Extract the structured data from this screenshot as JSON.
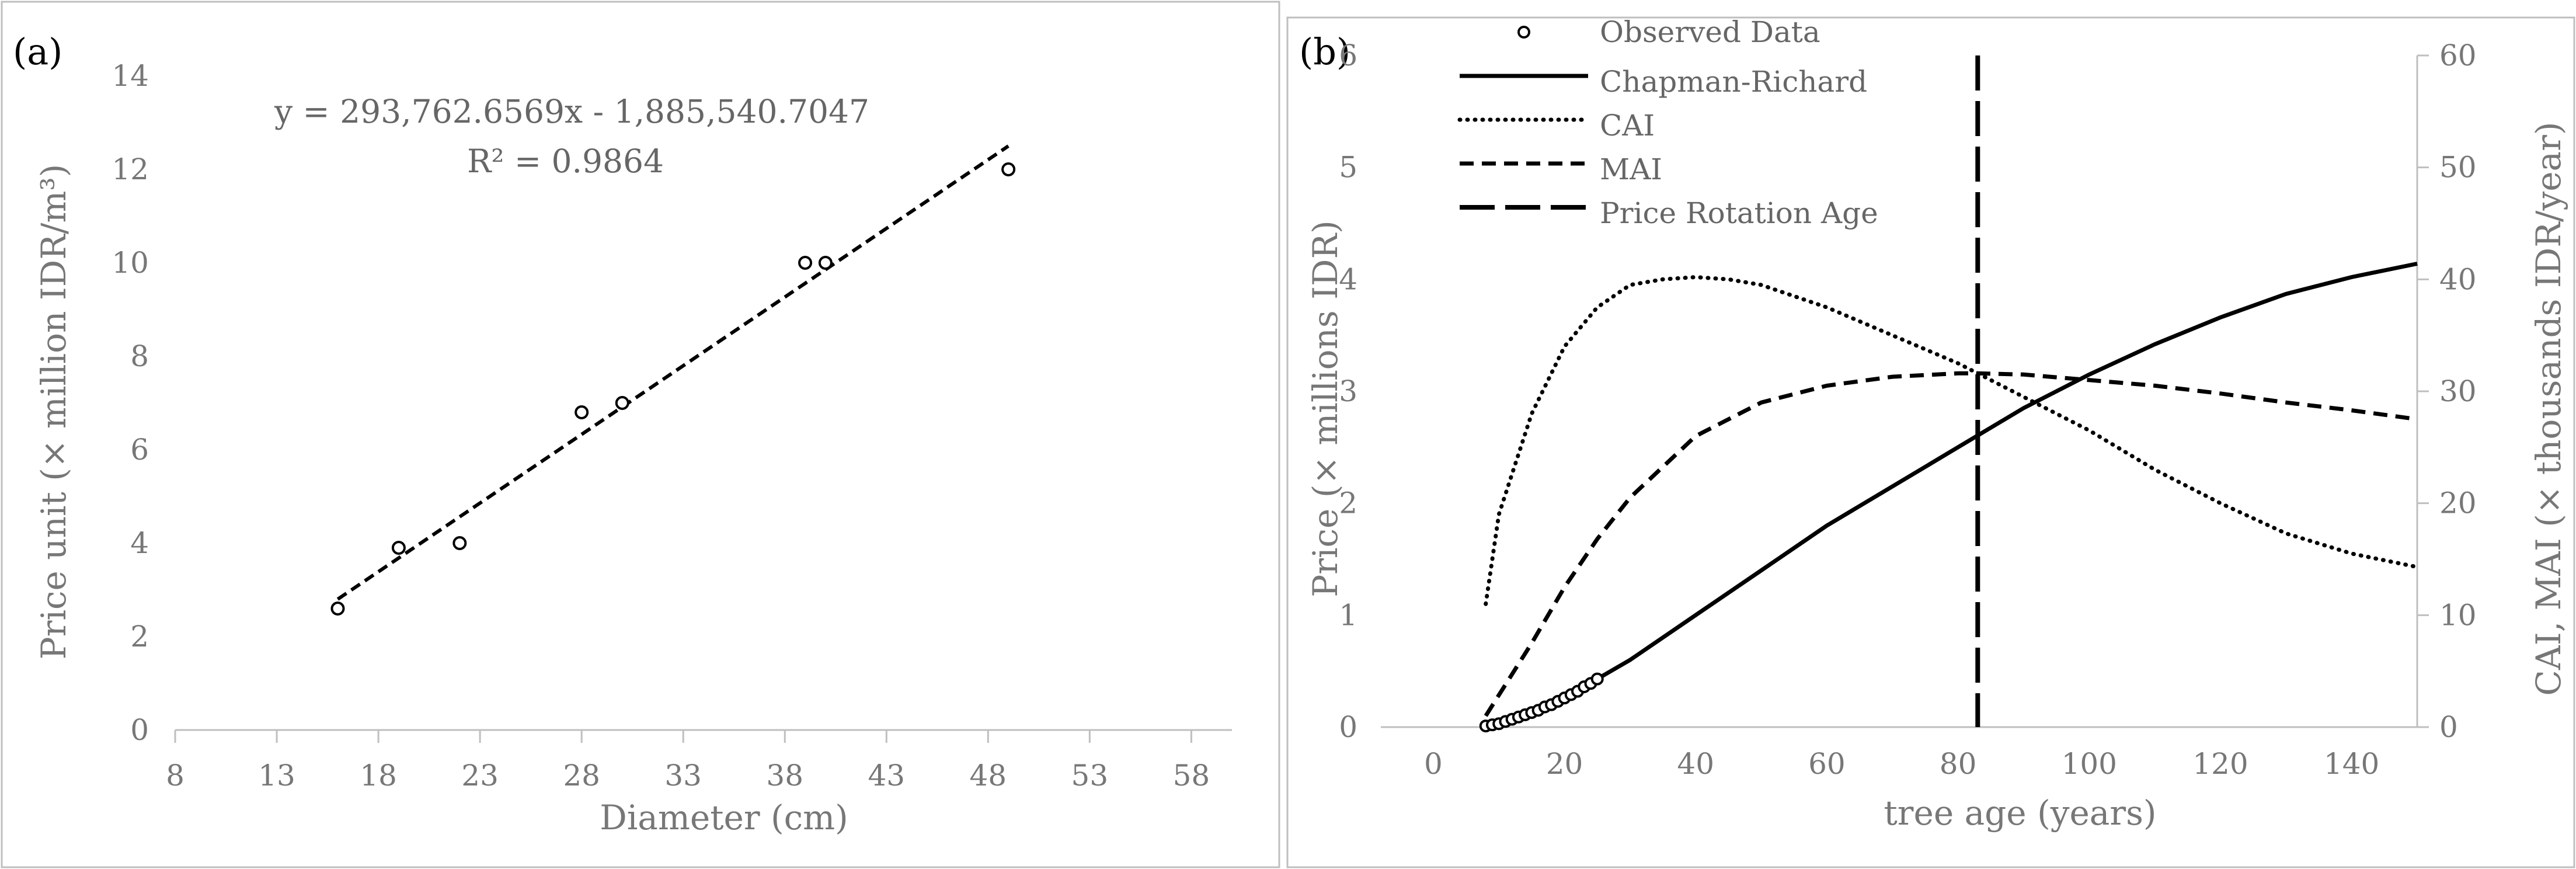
{
  "chart_data": [
    {
      "panel_label": "(a)",
      "type": "scatter",
      "xlabel": "Diameter (cm)",
      "ylabel": "Price unit (× million IDR/m³)",
      "xlim": [
        8,
        60
      ],
      "ylim": [
        0,
        14
      ],
      "xticks": [
        8,
        13,
        18,
        23,
        28,
        33,
        38,
        43,
        48,
        53,
        58
      ],
      "yticks": [
        0,
        2,
        4,
        6,
        8,
        10,
        12,
        14
      ],
      "grid": false,
      "points": {
        "x": [
          16,
          19,
          22,
          28,
          30,
          39,
          40,
          49
        ],
        "y": [
          2.6,
          3.9,
          4.0,
          6.8,
          7.0,
          10.0,
          10.0,
          12.0
        ]
      },
      "trendline": {
        "x_start": 16,
        "x_end": 49,
        "y_start": 2.8,
        "y_end": 12.5
      },
      "equation": "y = 293,762.6569x - 1,885,540.7047",
      "r_squared": "R² = 0.9864"
    },
    {
      "panel_label": "(b)",
      "type": "line",
      "xlabel": "tree age (years)",
      "ylabel": "Price  (× millions IDR)",
      "y2label": "CAI, MAI (× thousands IDR/year)",
      "xlim": [
        -8,
        150
      ],
      "ylim": [
        0,
        6
      ],
      "y2lim": [
        0,
        60
      ],
      "xticks": [
        0,
        20,
        40,
        60,
        80,
        100,
        120,
        140
      ],
      "yticks": [
        0,
        1,
        2,
        3,
        4,
        5,
        6
      ],
      "y2ticks": [
        0,
        10,
        20,
        30,
        40,
        50,
        60
      ],
      "legend_position": "top-left",
      "legend": [
        "Observed Data",
        "Chapman-Richard",
        "CAI",
        "MAI",
        "Price Rotation Age"
      ],
      "observed": {
        "x": [
          8,
          9,
          10,
          11,
          12,
          13,
          14,
          15,
          16,
          17,
          18,
          19,
          20,
          21,
          22,
          23,
          24,
          25
        ],
        "y": [
          0.01,
          0.02,
          0.03,
          0.05,
          0.07,
          0.09,
          0.11,
          0.13,
          0.15,
          0.18,
          0.2,
          0.23,
          0.26,
          0.29,
          0.32,
          0.36,
          0.39,
          0.43
        ]
      },
      "chapman_richard": {
        "x": [
          8,
          20,
          30,
          40,
          50,
          60,
          70,
          80,
          90,
          100,
          110,
          120,
          130,
          140,
          150
        ],
        "y": [
          0.01,
          0.26,
          0.6,
          1.0,
          1.4,
          1.8,
          2.15,
          2.5,
          2.85,
          3.15,
          3.42,
          3.66,
          3.87,
          4.02,
          4.14
        ]
      },
      "cai": {
        "axis": "right",
        "x": [
          8,
          10,
          15,
          20,
          25,
          30,
          35,
          40,
          45,
          50,
          60,
          70,
          80,
          90,
          100,
          110,
          120,
          130,
          140,
          150
        ],
        "y": [
          11,
          19,
          28,
          34,
          37.5,
          39.5,
          40,
          40.2,
          40,
          39.5,
          37.5,
          35,
          32.5,
          29.5,
          26.5,
          23,
          20,
          17.3,
          15.5,
          14.3
        ]
      },
      "mai": {
        "axis": "right",
        "x": [
          8,
          15,
          20,
          25,
          30,
          40,
          50,
          60,
          70,
          80,
          83,
          90,
          100,
          110,
          120,
          130,
          140,
          150
        ],
        "y": [
          1,
          7.5,
          12.5,
          16.8,
          20.5,
          26,
          29,
          30.5,
          31.3,
          31.6,
          31.6,
          31.5,
          31,
          30.5,
          29.8,
          29,
          28.3,
          27.5
        ]
      },
      "rotation_age": 83
    }
  ]
}
